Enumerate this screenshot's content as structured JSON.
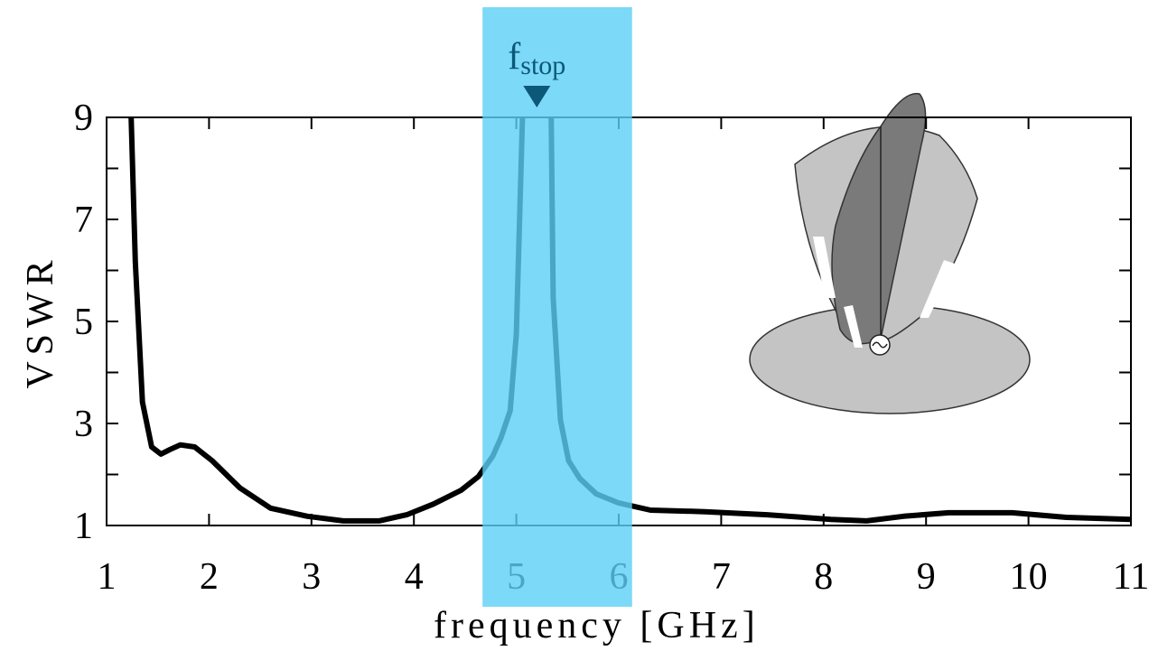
{
  "chart_data": {
    "type": "line",
    "ylabel": "VSWR",
    "xlabel": "frequency [GHz]",
    "x": [
      1.24,
      1.28,
      1.35,
      1.44,
      1.53,
      1.62,
      1.72,
      1.86,
      2.03,
      2.3,
      2.6,
      2.96,
      3.31,
      3.66,
      3.93,
      4.19,
      4.46,
      4.63,
      4.77,
      4.85,
      4.94,
      5.0,
      5.06,
      5.2,
      5.34,
      5.36,
      5.43,
      5.51,
      5.62,
      5.78,
      6.0,
      6.31,
      6.84,
      7.45,
      8.07,
      8.42,
      8.78,
      9.22,
      9.84,
      10.37,
      11.0
    ],
    "series": [
      {
        "name": "VSWR",
        "color": "#000000",
        "values": [
          9.0,
          6.17,
          3.42,
          2.54,
          2.4,
          2.49,
          2.58,
          2.54,
          2.27,
          1.74,
          1.34,
          1.18,
          1.09,
          1.09,
          1.21,
          1.42,
          1.69,
          1.96,
          2.36,
          2.72,
          3.25,
          4.75,
          9.0,
          null,
          9.0,
          5.46,
          3.07,
          2.27,
          1.92,
          1.62,
          1.44,
          1.3,
          1.27,
          1.21,
          1.12,
          1.09,
          1.18,
          1.25,
          1.25,
          1.16,
          1.12
        ]
      }
    ],
    "xlim": [
      1,
      11
    ],
    "xticks": [
      1,
      2,
      3,
      4,
      5,
      6,
      7,
      8,
      9,
      10,
      11
    ],
    "ylim": [
      1,
      9
    ],
    "yticks": [
      1,
      3,
      5,
      7,
      9
    ],
    "y_minor_ticks": [
      2,
      4,
      6,
      8
    ],
    "band": {
      "xlim": [
        4.67,
        6.13
      ],
      "color": "#5bcff5"
    },
    "annotation": {
      "text": "f",
      "subscript": "stop",
      "x": 5.2,
      "color": "#0b5878"
    }
  }
}
